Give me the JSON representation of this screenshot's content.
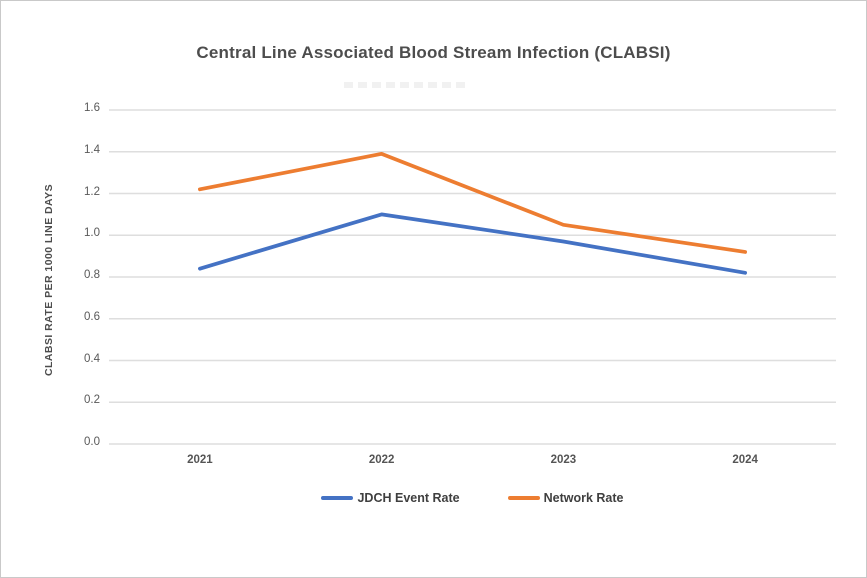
{
  "colors": {
    "jdch_series": "#4472C4",
    "network_series": "#ED7D31",
    "gridline": "#DEDEDE",
    "tick_text": "#595959",
    "title_text": "#4D4D4D"
  },
  "chart_data": {
    "type": "line",
    "title": "Central Line Associated Blood Stream Infection (CLABSI)",
    "xlabel": "",
    "ylabel": "CLABSI RATE PER 1000 LINE DAYS",
    "categories": [
      "2021",
      "2022",
      "2023",
      "2024"
    ],
    "series": [
      {
        "name": "JDCH Event Rate",
        "color": "#4472C4",
        "values": [
          0.84,
          1.1,
          0.97,
          0.82
        ]
      },
      {
        "name": "Network Rate",
        "color": "#ED7D31",
        "values": [
          1.22,
          1.39,
          1.05,
          0.92
        ]
      }
    ],
    "ylim": [
      0.0,
      1.6
    ],
    "ytick_step": 0.2,
    "yticks": [
      "0.0",
      "0.2",
      "0.4",
      "0.6",
      "0.8",
      "1.0",
      "1.2",
      "1.4",
      "1.6"
    ],
    "grid": true,
    "legend_position": "bottom"
  }
}
